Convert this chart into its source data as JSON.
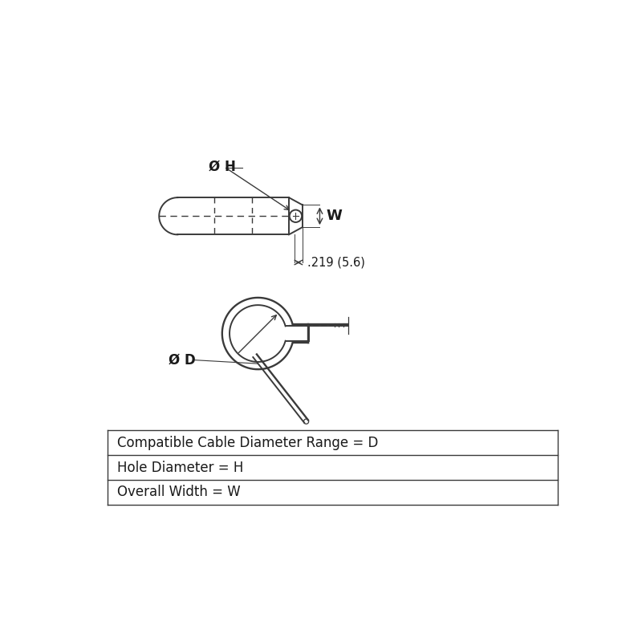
{
  "bg_color": "#ffffff",
  "line_color": "#3a3a3a",
  "text_color": "#1a1a1a",
  "table_rows": [
    "Compatible Cable Diameter Range = D",
    "Hole Diameter = H",
    "Overall Width = W"
  ],
  "dim_text": ".219 (5.6)",
  "label_H": "Ø H",
  "label_W": "W",
  "label_D": "Ø D"
}
